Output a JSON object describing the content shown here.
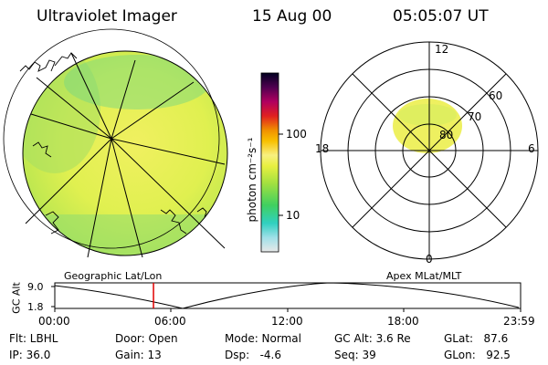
{
  "header": {
    "title": "Ultraviolet Imager",
    "date": "15 Aug 00",
    "time": "05:05:07 UT"
  },
  "colorbar": {
    "label": "photon cm⁻²s⁻¹",
    "ticks": [
      "100",
      "10"
    ]
  },
  "polar": {
    "mlt_labels": {
      "top": "12",
      "left": "18",
      "right": "6",
      "bottom": "0"
    },
    "lat_labels": [
      "60",
      "70",
      "80"
    ]
  },
  "altitude_plot": {
    "left_title": "Geographic Lat/Lon",
    "right_title": "Apex MLat/MLT",
    "ylabel": "GC Alt",
    "y_ticks": [
      "9.0",
      "1.8"
    ],
    "x_ticks": [
      "00:00",
      "06:00",
      "12:00",
      "18:00",
      "23:59"
    ],
    "current_marker_hours": 5.085
  },
  "info": {
    "flt": "Flt: LBHL",
    "ip": "IP: 36.0",
    "door": "Door: Open",
    "gain": "Gain: 13",
    "mode": "Mode: Normal",
    "dsp": "Dsp:   -4.6",
    "gcalt": "GC Alt: 3.6 Re",
    "seq": "Seq: 39",
    "glat": "GLat:   87.6",
    "glon": "GLon:   92.5"
  }
}
